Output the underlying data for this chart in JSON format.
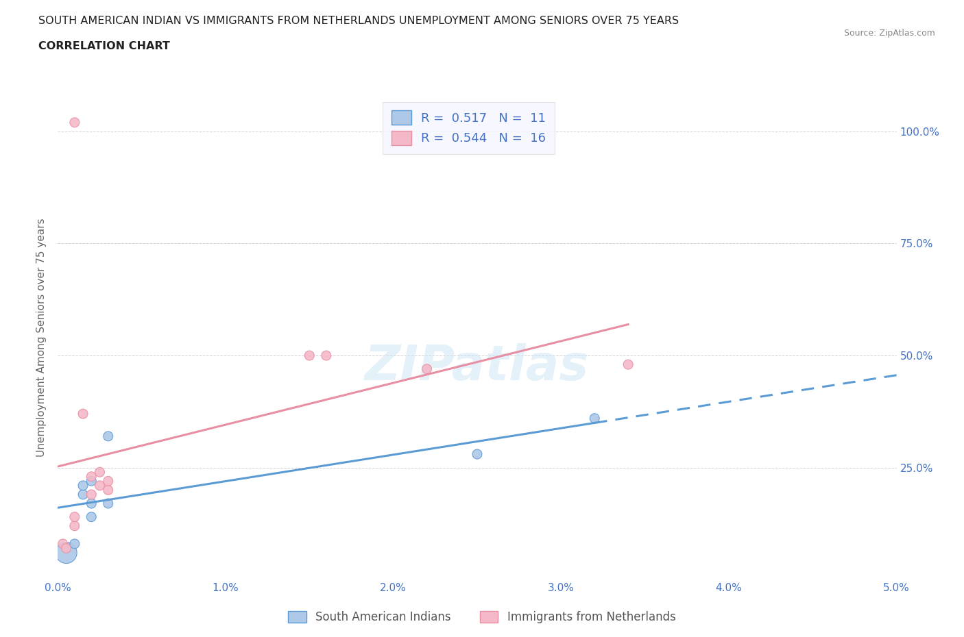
{
  "title_line1": "SOUTH AMERICAN INDIAN VS IMMIGRANTS FROM NETHERLANDS UNEMPLOYMENT AMONG SENIORS OVER 75 YEARS",
  "title_line2": "CORRELATION CHART",
  "source_text": "Source: ZipAtlas.com",
  "ylabel": "Unemployment Among Seniors over 75 years",
  "xlim": [
    0.0,
    0.05
  ],
  "ylim": [
    0.0,
    1.08
  ],
  "ytick_vals": [
    0.0,
    0.25,
    0.5,
    0.75,
    1.0
  ],
  "ytick_labels_left": [
    "",
    "",
    "",
    "",
    ""
  ],
  "ytick_labels_right": [
    "",
    "25.0%",
    "50.0%",
    "75.0%",
    "100.0%"
  ],
  "xtick_labels": [
    "0.0%",
    "1.0%",
    "2.0%",
    "3.0%",
    "4.0%",
    "5.0%"
  ],
  "xtick_vals": [
    0.0,
    0.01,
    0.02,
    0.03,
    0.04,
    0.05
  ],
  "blue_scatter_x": [
    0.0005,
    0.001,
    0.0015,
    0.0015,
    0.002,
    0.002,
    0.002,
    0.003,
    0.003,
    0.025,
    0.032
  ],
  "blue_scatter_y": [
    0.06,
    0.08,
    0.19,
    0.21,
    0.14,
    0.17,
    0.22,
    0.17,
    0.32,
    0.28,
    0.36
  ],
  "blue_scatter_size": [
    500,
    100,
    100,
    100,
    100,
    100,
    100,
    100,
    100,
    100,
    100
  ],
  "pink_scatter_x": [
    0.0003,
    0.0005,
    0.001,
    0.001,
    0.0015,
    0.002,
    0.002,
    0.0025,
    0.0025,
    0.003,
    0.003,
    0.015,
    0.016,
    0.022,
    0.034,
    0.001
  ],
  "pink_scatter_y": [
    0.08,
    0.07,
    0.12,
    0.14,
    0.37,
    0.19,
    0.23,
    0.21,
    0.24,
    0.2,
    0.22,
    0.5,
    0.5,
    0.47,
    0.48,
    1.02
  ],
  "pink_scatter_size": [
    100,
    100,
    100,
    100,
    100,
    100,
    100,
    100,
    100,
    100,
    100,
    100,
    100,
    100,
    100,
    100
  ],
  "blue_R": 0.517,
  "blue_N": 11,
  "pink_R": 0.544,
  "pink_N": 16,
  "blue_line_color": "#5b9bd5",
  "pink_line_color": "#e88fa3",
  "blue_scatter_color": "#aec8e8",
  "pink_scatter_color": "#f4b8c8",
  "watermark_text": "ZIPatlas",
  "legend_label_blue": "South American Indians",
  "legend_label_pink": "Immigrants from Netherlands",
  "title_color": "#222222",
  "tick_color": "#4472c4",
  "grid_color": "#cccccc",
  "background_color": "#ffffff"
}
